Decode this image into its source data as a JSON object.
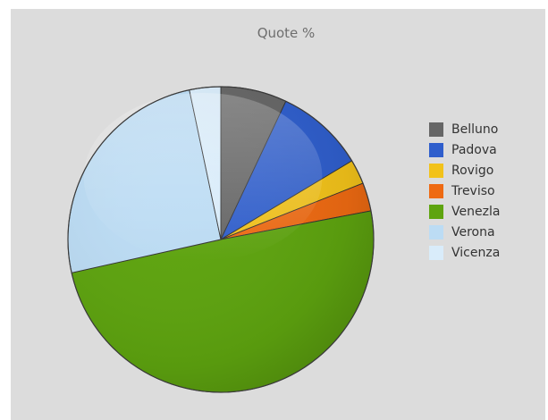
{
  "chart_data": {
    "type": "pie",
    "title": "Quote %",
    "series": [
      {
        "name": "Belluno",
        "value": 7.0,
        "color": "#666666"
      },
      {
        "name": "Padova",
        "value": 9.4,
        "color": "#2f5ecc"
      },
      {
        "name": "Rovigo",
        "value": 2.6,
        "color": "#f2c21a"
      },
      {
        "name": "Treviso",
        "value": 3.0,
        "color": "#ee6a12"
      },
      {
        "name": "Venezia",
        "value": 49.5,
        "color": "#5ea40f"
      },
      {
        "name": "Verona",
        "value": 25.2,
        "color": "#bcdcf4"
      },
      {
        "name": "Vicenza",
        "value": 3.3,
        "color": "#d9ecfa"
      }
    ],
    "legend_labels": [
      "Belluno",
      "Padova",
      "Rovigo",
      "Treviso",
      "Venezla",
      "Verona",
      "Vicenza"
    ],
    "legend": "right",
    "start_angle_deg": 90,
    "direction": "clockwise"
  }
}
